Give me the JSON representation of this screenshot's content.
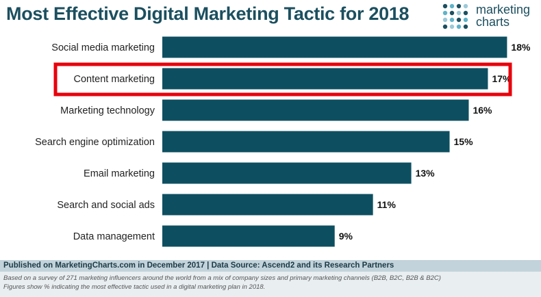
{
  "logo": {
    "line1": "marketing",
    "line2": "charts",
    "dot_colors": [
      "#5fb3c9",
      "#1b4f5f",
      "#9cc9d6"
    ]
  },
  "colors": {
    "bar": "#0d4f60",
    "title": "#1b4f5f",
    "highlight": "#e8000b"
  },
  "chart_data": {
    "type": "bar",
    "orientation": "horizontal",
    "title": "Most Effective Digital Marketing Tactic for 2018",
    "categories": [
      "Social media marketing",
      "Content marketing",
      "Marketing technology",
      "Search engine optimization",
      "Email marketing",
      "Search and social ads",
      "Data management"
    ],
    "values": [
      18,
      17,
      16,
      15,
      13,
      11,
      9
    ],
    "value_labels": [
      "18%",
      "17%",
      "16%",
      "15%",
      "13%",
      "11%",
      "9%"
    ],
    "unit": "%",
    "xlim": [
      0,
      18.7
    ],
    "grid": false,
    "highlighted_category": "Content marketing",
    "xlabel": "",
    "ylabel": ""
  },
  "footer": {
    "published": "Published on MarketingCharts.com in December 2017 | Data Source: Ascend2 and its Research Partners",
    "note1": "Based on a survey of 271 marketing influencers around the world from a mix of company sizes and primary marketing channels (B2B, B2C, B2B & B2C)",
    "note2": "Figures show % indicating the most effective tactic used in a digital marketing plan in 2018."
  }
}
